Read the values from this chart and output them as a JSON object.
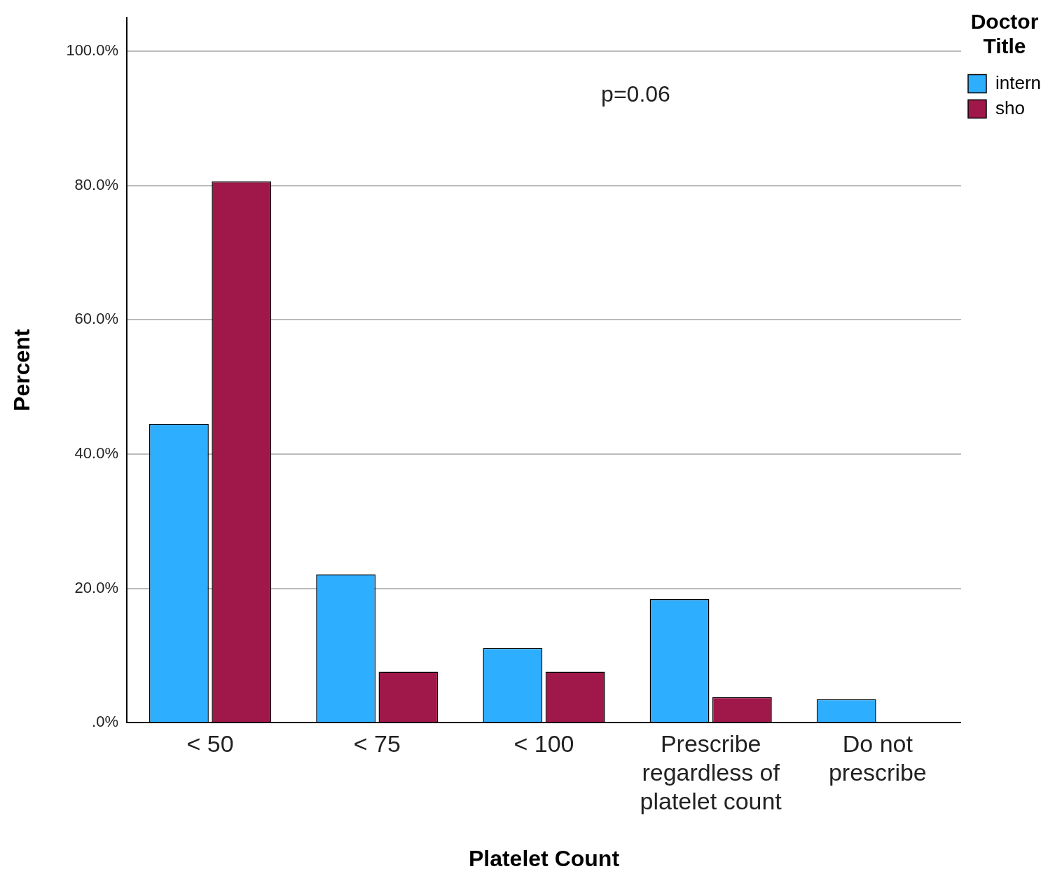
{
  "chart_data": {
    "type": "bar",
    "xlabel": "Platelet Count",
    "ylabel": "Percent",
    "legend_title": "Doctor Title",
    "categories": [
      "< 50",
      "< 75",
      "< 100",
      "Prescribe regardless of platelet count",
      "Do not prescribe"
    ],
    "series": [
      {
        "name": "intern",
        "color": "#2eaeff",
        "values": [
          44.5,
          22.1,
          11.1,
          18.4,
          3.5
        ]
      },
      {
        "name": "sho",
        "color": "#a0184a",
        "values": [
          80.6,
          7.6,
          7.6,
          3.8,
          0
        ]
      }
    ],
    "ylim": [
      0,
      105
    ],
    "yticks": [
      {
        "value": 0,
        "label": ".0%"
      },
      {
        "value": 20,
        "label": "20.0%"
      },
      {
        "value": 40,
        "label": "40.0%"
      },
      {
        "value": 60,
        "label": "60.0%"
      },
      {
        "value": 80,
        "label": "80.0%"
      },
      {
        "value": 100,
        "label": "100.0%"
      }
    ],
    "grid": "y",
    "legend": "top right",
    "annotations": [
      "p=0.06"
    ]
  }
}
